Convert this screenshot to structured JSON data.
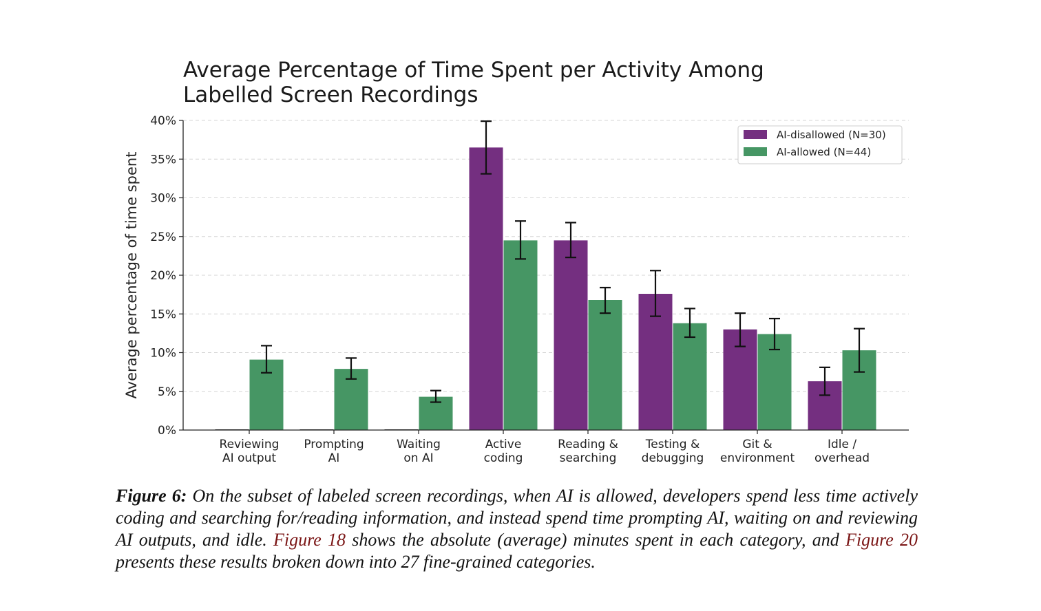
{
  "chart_data": {
    "type": "bar",
    "title_lines": [
      "Average Percentage of Time Spent per Activity Among",
      "Labelled Screen Recordings"
    ],
    "xlabel": "",
    "ylabel": "Average percentage of time spent",
    "ylim": [
      0,
      40
    ],
    "yticks": [
      0,
      5,
      10,
      15,
      20,
      25,
      30,
      35,
      40
    ],
    "ytick_labels": [
      "0%",
      "5%",
      "10%",
      "15%",
      "20%",
      "25%",
      "30%",
      "35%",
      "40%"
    ],
    "grid": true,
    "legend_position": "top-right",
    "categories": [
      [
        "Reviewing",
        "AI output"
      ],
      [
        "Prompting",
        "AI"
      ],
      [
        "Waiting",
        "on AI"
      ],
      [
        "Active",
        "coding"
      ],
      [
        "Reading &",
        "searching"
      ],
      [
        "Testing &",
        "debugging"
      ],
      [
        "Git &",
        "environment"
      ],
      [
        "Idle /",
        "overhead"
      ]
    ],
    "series": [
      {
        "name": "AI-disallowed (N=30)",
        "color": "#742f80",
        "values": [
          0,
          0,
          0,
          36.5,
          24.5,
          17.6,
          13.0,
          6.3
        ],
        "err_low": [
          0,
          0,
          0,
          33.1,
          22.3,
          14.7,
          10.8,
          4.5
        ],
        "err_high": [
          0,
          0,
          0,
          39.9,
          26.8,
          20.6,
          15.1,
          8.1
        ]
      },
      {
        "name": "AI-allowed (N=44)",
        "color": "#469664",
        "values": [
          9.1,
          7.9,
          4.3,
          24.5,
          16.8,
          13.8,
          12.4,
          10.3
        ],
        "err_low": [
          7.4,
          6.6,
          3.6,
          22.1,
          15.1,
          12.0,
          10.4,
          7.5
        ],
        "err_high": [
          10.9,
          9.3,
          5.1,
          27.0,
          18.4,
          15.7,
          14.4,
          13.1
        ]
      }
    ]
  },
  "caption": {
    "label": "Figure 6:",
    "part1": " On the subset of labeled screen recordings, when AI is allowed, developers spend less time actively coding and searching for/reading information, and instead spend time prompting AI, waiting on and reviewing AI outputs, and idle. ",
    "ref1": "Figure 18",
    "part2": " shows the absolute (average) minutes spent in each category, and ",
    "ref2": "Figure 20",
    "part3": " presents these results broken down into 27 fine-grained categories."
  }
}
